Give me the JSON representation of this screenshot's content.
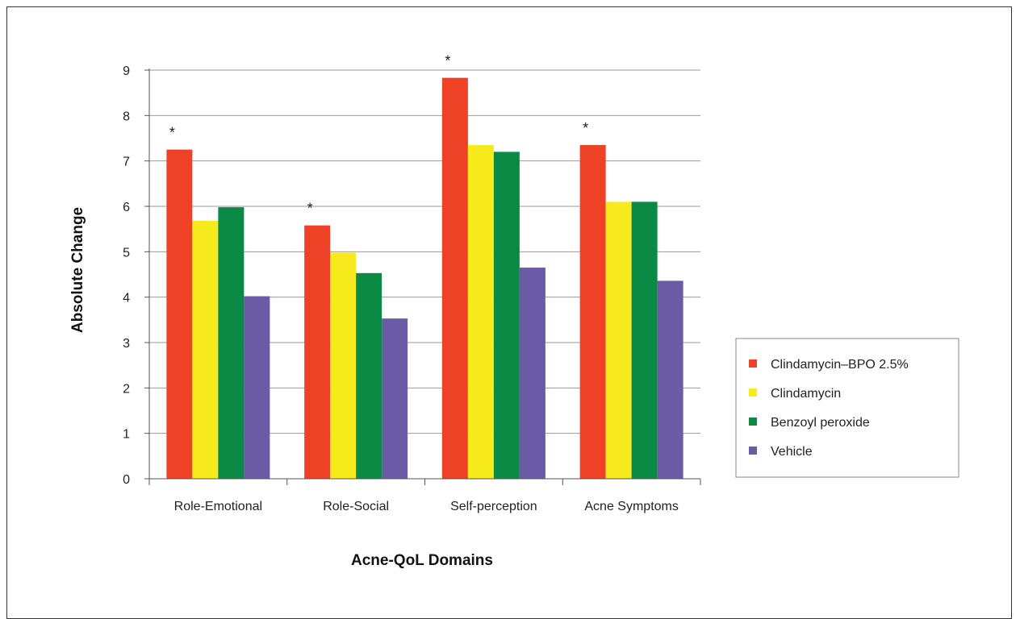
{
  "chart_data": {
    "type": "bar",
    "title": "",
    "xlabel": "Acne-QoL Domains",
    "ylabel": "Absolute Change",
    "ylim": [
      0,
      9
    ],
    "yticks": [
      0,
      1,
      2,
      3,
      4,
      5,
      6,
      7,
      8,
      9
    ],
    "grid": true,
    "legend": "right",
    "categories": [
      "Role-Emotional",
      "Role-Social",
      "Self-perception",
      "Acne Symptoms"
    ],
    "series": [
      {
        "name": "Clindamycin–BPO 2.5%",
        "color": "#ee4126",
        "values": [
          7.25,
          5.58,
          8.83,
          7.35
        ]
      },
      {
        "name": "Clindamycin",
        "color": "#f7ea1d",
        "values": [
          5.68,
          4.98,
          7.35,
          6.1
        ]
      },
      {
        "name": "Benzoyl peroxide",
        "color": "#0a8a45",
        "values": [
          5.98,
          4.53,
          7.2,
          6.1
        ]
      },
      {
        "name": "Vehicle",
        "color": "#6b5ba7",
        "values": [
          4.02,
          3.53,
          4.65,
          4.36
        ]
      }
    ],
    "annotations": [
      {
        "text": "*",
        "category": 0,
        "series": 0
      },
      {
        "text": "*",
        "category": 1,
        "series": 0
      },
      {
        "text": "*",
        "category": 2,
        "series": 0
      },
      {
        "text": "*",
        "category": 3,
        "series": 0
      }
    ]
  }
}
